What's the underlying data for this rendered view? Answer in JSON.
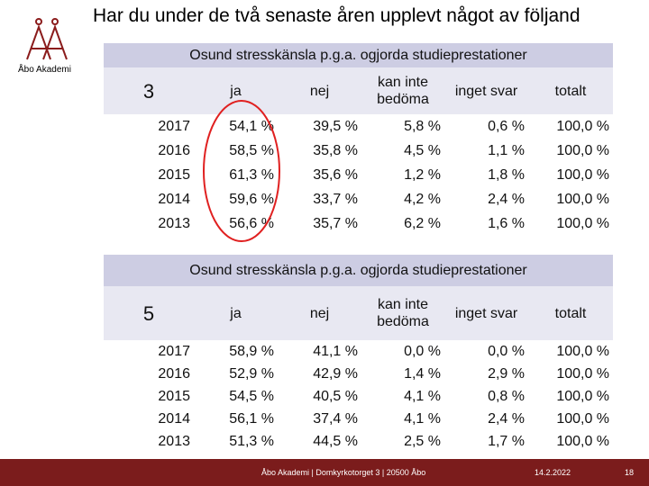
{
  "header": {
    "title": "Har du under de två senaste åren upplevt något av följand",
    "logo_text": "Åbo Akademi"
  },
  "tables": [
    {
      "caption": "Osund stresskänsla p.g.a. ogjorda studieprestationer",
      "corner": "3",
      "columns": [
        "ja",
        "nej",
        "kan inte bedöma",
        "inget svar",
        "totalt"
      ],
      "rows": [
        [
          "2017",
          "54,1 %",
          "39,5 %",
          "5,8 %",
          "0,6 %",
          "100,0 %"
        ],
        [
          "2016",
          "58,5 %",
          "35,8 %",
          "4,5 %",
          "1,1 %",
          "100,0 %"
        ],
        [
          "2015",
          "61,3 %",
          "35,6 %",
          "1,2 %",
          "1,8 %",
          "100,0 %"
        ],
        [
          "2014",
          "59,6 %",
          "33,7 %",
          "4,2 %",
          "2,4 %",
          "100,0 %"
        ],
        [
          "2013",
          "56,6 %",
          "35,7 %",
          "6,2 %",
          "1,6 %",
          "100,0 %"
        ]
      ]
    },
    {
      "caption": "Osund stresskänsla p.g.a. ogjorda studieprestationer",
      "corner": "5",
      "columns": [
        "ja",
        "nej",
        "kan inte bedöma",
        "inget svar",
        "totalt"
      ],
      "rows": [
        [
          "2017",
          "58,9 %",
          "41,1 %",
          "0,0 %",
          "0,0 %",
          "100,0 %"
        ],
        [
          "2016",
          "52,9 %",
          "42,9 %",
          "1,4 %",
          "2,9 %",
          "100,0 %"
        ],
        [
          "2015",
          "54,5 %",
          "40,5 %",
          "4,1 %",
          "0,8 %",
          "100,0 %"
        ],
        [
          "2014",
          "56,1 %",
          "37,4 %",
          "4,1 %",
          "2,4 %",
          "100,0 %"
        ],
        [
          "2013",
          "51,3 %",
          "44,5 %",
          "2,5 %",
          "1,7 %",
          "100,0 %"
        ]
      ]
    }
  ],
  "footer": {
    "address": "Åbo Akademi | Domkyrkotorget 3 | 20500 Åbo",
    "date": "14.2.2022",
    "page": "18"
  }
}
